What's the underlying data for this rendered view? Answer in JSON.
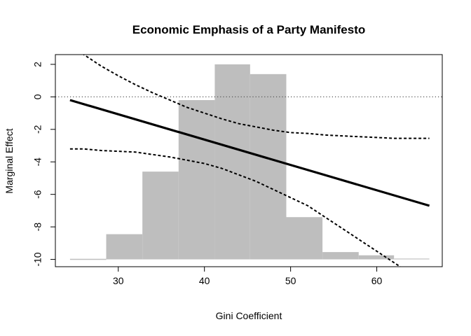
{
  "chart_data": {
    "type": "line",
    "title": "Economic Emphasis of a Party Manifesto",
    "xlabel": "Gini Coefficient",
    "ylabel": "Marginal Effect",
    "xlim": [
      22.7,
      67.6
    ],
    "ylim": [
      -10.45,
      2.6
    ],
    "x_ticks": [
      30,
      40,
      50,
      60
    ],
    "y_ticks": [
      2,
      0,
      -2,
      -4,
      -6,
      -8,
      -10
    ],
    "grid": false,
    "legend": "none",
    "reference_line": {
      "y": 0,
      "style": "dotted",
      "color": "#555555"
    },
    "marginal_effect": {
      "x": [
        24.4,
        66.1
      ],
      "y": [
        -0.2,
        -6.7
      ],
      "color": "#000000",
      "style": "solid"
    },
    "ci_upper": {
      "x": [
        24.4,
        26,
        28,
        30,
        32,
        34,
        36,
        38,
        40,
        42,
        44,
        46,
        48,
        50,
        52,
        54,
        56,
        58,
        60,
        62,
        64,
        66.1
      ],
      "y": [
        4.0,
        2.6,
        1.9,
        1.3,
        0.75,
        0.25,
        -0.2,
        -0.65,
        -1.0,
        -1.35,
        -1.65,
        -1.85,
        -2.05,
        -2.2,
        -2.25,
        -2.35,
        -2.4,
        -2.45,
        -2.5,
        -2.55,
        -2.55,
        -2.55
      ],
      "color": "#000000",
      "style": "dashed"
    },
    "ci_lower": {
      "x": [
        24.4,
        26,
        28,
        30,
        32,
        34,
        36,
        38,
        40,
        42,
        44,
        46,
        48,
        50,
        52,
        54,
        56,
        58,
        60,
        62,
        64,
        66.1
      ],
      "y": [
        -3.2,
        -3.2,
        -3.3,
        -3.35,
        -3.4,
        -3.55,
        -3.7,
        -3.9,
        -4.1,
        -4.4,
        -4.8,
        -5.2,
        -5.7,
        -6.2,
        -6.7,
        -7.4,
        -8.1,
        -8.8,
        -9.5,
        -10.2,
        -10.9,
        -11.6
      ],
      "color": "#000000",
      "style": "dashed"
    },
    "histogram": {
      "base": -10,
      "color": "#bebebe",
      "bins": [
        {
          "x0": 24.4,
          "x1": 28.6,
          "top": -10
        },
        {
          "x0": 28.6,
          "x1": 32.8,
          "top": -8.45
        },
        {
          "x0": 32.8,
          "x1": 37.0,
          "top": -4.6
        },
        {
          "x0": 37.0,
          "x1": 41.2,
          "top": -0.2
        },
        {
          "x0": 41.2,
          "x1": 45.3,
          "top": 2.0
        },
        {
          "x0": 45.3,
          "x1": 49.5,
          "top": 1.4
        },
        {
          "x0": 49.5,
          "x1": 53.7,
          "top": -7.4
        },
        {
          "x0": 53.7,
          "x1": 57.9,
          "top": -9.55
        },
        {
          "x0": 57.9,
          "x1": 62.0,
          "top": -9.75
        },
        {
          "x0": 62.0,
          "x1": 66.1,
          "top": -9.95
        }
      ]
    }
  }
}
